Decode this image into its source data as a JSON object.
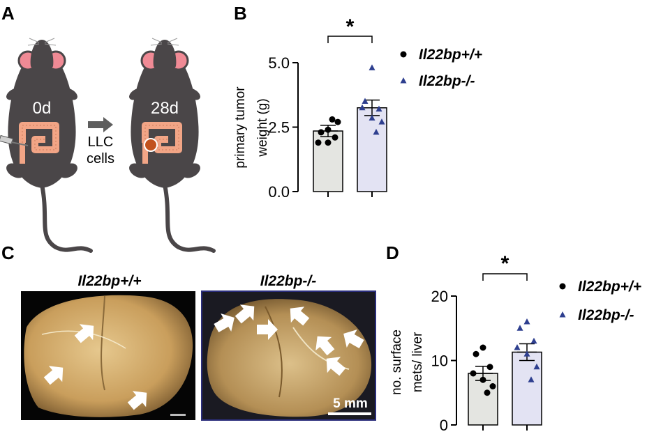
{
  "panels": {
    "a": {
      "label": "A",
      "day_start": "0d",
      "day_end": "28d",
      "arrow_line1": "LLC",
      "arrow_line2": "cells"
    },
    "b": {
      "label": "B"
    },
    "c": {
      "label": "C",
      "left_title": "Il22bp+/+",
      "right_title": "Il22bp-/-",
      "scale_bar": "5 mm"
    },
    "d": {
      "label": "D"
    }
  },
  "colors": {
    "wt_bar": "#e4e5e1",
    "ko_bar": "#e3e3f3",
    "ko_marker": "#2e3f8f",
    "ko_border": "#2b2e7c",
    "mouse_body": "#4a4648",
    "ear": "#f08a95",
    "intestine": "#f2a586",
    "tumor": "#c2521d",
    "liver": "#d8b57a"
  },
  "icons": [
    "mouse-illustration",
    "syringe-icon",
    "arrow-right-icon",
    "white-arrow-icon"
  ],
  "chart_data": [
    {
      "type": "bar",
      "panel": "B",
      "ylabel": [
        "primary tumor",
        "weight (g)"
      ],
      "ylim": [
        0,
        5
      ],
      "yticks": [
        "0.0",
        "2.5",
        "5.0"
      ],
      "significance": "*",
      "legend_placement": "right",
      "series": [
        {
          "name": "Il22bp+/+",
          "marker": "circle",
          "mean": 2.35,
          "sem": 0.22,
          "points": [
            2.4,
            2.3,
            2.1,
            1.9,
            1.9,
            2.7,
            2.8
          ]
        },
        {
          "name": "Il22bp-/-",
          "marker": "triangle",
          "mean": 3.25,
          "sem": 0.3,
          "points": [
            4.8,
            3.5,
            3.2,
            3.25,
            2.85,
            2.7,
            2.3
          ]
        }
      ]
    },
    {
      "type": "bar",
      "panel": "D",
      "ylabel": [
        "no. surface",
        "mets/ liver"
      ],
      "ylim": [
        0,
        20
      ],
      "yticks": [
        "0",
        "10",
        "20"
      ],
      "significance": "*",
      "legend_placement": "right",
      "series": [
        {
          "name": "Il22bp+/+",
          "marker": "circle",
          "mean": 8,
          "sem": 1.1,
          "points": [
            12,
            11,
            9,
            8,
            7,
            6,
            5
          ]
        },
        {
          "name": "Il22bp-/-",
          "marker": "triangle",
          "mean": 11.3,
          "sem": 1.3,
          "points": [
            16,
            15,
            13,
            12,
            11,
            9,
            7
          ]
        }
      ]
    }
  ]
}
